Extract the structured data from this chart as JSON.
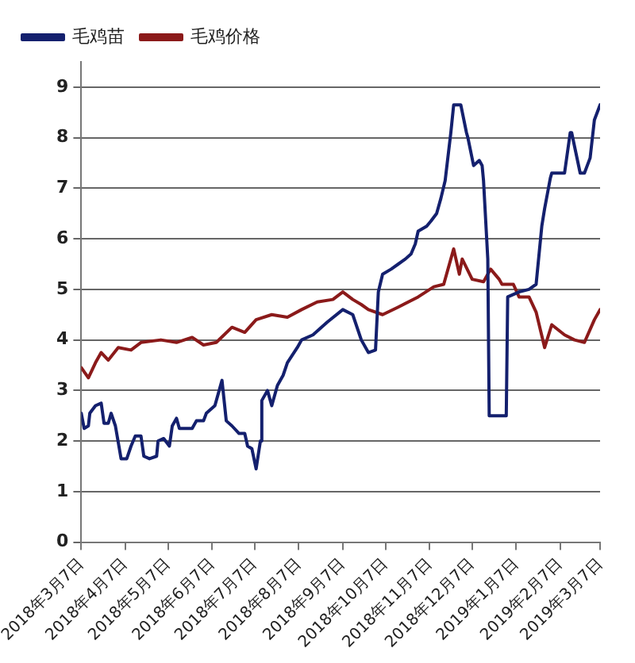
{
  "chart_data": {
    "type": "line",
    "xlim": [
      "2018-03-07",
      "2019-03-07"
    ],
    "xticks": [
      {
        "value": "2018-03-07",
        "label": "2018年3月7日"
      },
      {
        "value": "2018-04-07",
        "label": "2018年4月7日"
      },
      {
        "value": "2018-05-07",
        "label": "2018年5月7日"
      },
      {
        "value": "2018-06-07",
        "label": "2018年6月7日"
      },
      {
        "value": "2018-07-07",
        "label": "2018年7月7日"
      },
      {
        "value": "2018-08-07",
        "label": "2018年8月7日"
      },
      {
        "value": "2018-09-07",
        "label": "2018年9月7日"
      },
      {
        "value": "2018-10-07",
        "label": "2018年10月7日"
      },
      {
        "value": "2018-11-07",
        "label": "2018年11月7日"
      },
      {
        "value": "2018-12-07",
        "label": "2018年12月7日"
      },
      {
        "value": "2019-01-07",
        "label": "2019年1月7日"
      },
      {
        "value": "2019-02-07",
        "label": "2019年2月7日"
      },
      {
        "value": "2019-03-07",
        "label": "2019年3月7日"
      }
    ],
    "ylim": [
      0,
      9.5
    ],
    "yticks": [
      0,
      1,
      2,
      3,
      4,
      5,
      6,
      7,
      8,
      9
    ],
    "grid": "y",
    "legend": "top left",
    "marker": "none",
    "line_style": "solid",
    "series": [
      {
        "name": "毛鸡苗",
        "color": "#14206e",
        "x": [
          "2018-03-07",
          "2018-03-09",
          "2018-03-12",
          "2018-03-13",
          "2018-03-17",
          "2018-03-21",
          "2018-03-23",
          "2018-03-26",
          "2018-03-28",
          "2018-03-31",
          "2018-04-04",
          "2018-04-08",
          "2018-04-11",
          "2018-04-14",
          "2018-04-18",
          "2018-04-20",
          "2018-04-24",
          "2018-04-29",
          "2018-04-30",
          "2018-05-04",
          "2018-05-08",
          "2018-05-10",
          "2018-05-13",
          "2018-05-15",
          "2018-05-24",
          "2018-05-27",
          "2018-06-01",
          "2018-06-03",
          "2018-06-09",
          "2018-06-12",
          "2018-06-14",
          "2018-06-17",
          "2018-06-21",
          "2018-06-26",
          "2018-06-30",
          "2018-07-02",
          "2018-07-05",
          "2018-07-08",
          "2018-07-11",
          "2018-07-12",
          "2018-07-16",
          "2018-07-19",
          "2018-07-23",
          "2018-07-27",
          "2018-07-30",
          "2018-08-06",
          "2018-08-09",
          "2018-08-17",
          "2018-08-27",
          "2018-09-07",
          "2018-09-14",
          "2018-09-20",
          "2018-09-25",
          "2018-09-30",
          "2018-10-02",
          "2018-10-05",
          "2018-10-11",
          "2018-10-16",
          "2018-10-21",
          "2018-10-25",
          "2018-10-28",
          "2018-10-30",
          "2018-11-05",
          "2018-11-08",
          "2018-11-12",
          "2018-11-15",
          "2018-11-18",
          "2018-11-22",
          "2018-11-24",
          "2018-11-29",
          "2018-12-03",
          "2018-12-04",
          "2018-12-08",
          "2018-12-12",
          "2018-12-14",
          "2018-12-15",
          "2018-12-18",
          "2018-12-19",
          "2018-12-31",
          "2019-01-01",
          "2019-01-09",
          "2019-01-16",
          "2019-01-21",
          "2019-01-25",
          "2019-01-27",
          "2019-01-29",
          "2019-01-31",
          "2019-02-01",
          "2019-02-10",
          "2019-02-14",
          "2019-02-15",
          "2019-02-21",
          "2019-02-24",
          "2019-02-28",
          "2019-03-03",
          "2019-03-07"
        ],
        "values": [
          2.55,
          2.25,
          2.3,
          2.55,
          2.7,
          2.75,
          2.35,
          2.35,
          2.55,
          2.3,
          1.65,
          1.65,
          1.9,
          2.1,
          2.1,
          1.7,
          1.65,
          1.7,
          2.0,
          2.05,
          1.9,
          2.3,
          2.45,
          2.25,
          2.25,
          2.4,
          2.4,
          2.55,
          2.7,
          3.0,
          3.2,
          2.4,
          2.3,
          2.15,
          2.15,
          1.9,
          1.85,
          1.45,
          2.0,
          2.8,
          3.0,
          2.7,
          3.1,
          3.3,
          3.55,
          3.85,
          4.0,
          4.1,
          4.35,
          4.6,
          4.5,
          4.0,
          3.75,
          3.8,
          4.95,
          5.3,
          5.4,
          5.5,
          5.6,
          5.7,
          5.9,
          6.15,
          6.25,
          6.35,
          6.5,
          6.8,
          7.15,
          8.1,
          8.65,
          8.65,
          8.1,
          8.0,
          7.45,
          7.55,
          7.45,
          7.15,
          5.6,
          2.5,
          2.5,
          4.85,
          4.95,
          5.0,
          5.1,
          6.25,
          6.6,
          6.9,
          7.2,
          7.3,
          7.3,
          8.1,
          8.1,
          7.3,
          7.3,
          7.6,
          8.35,
          8.65
        ]
      },
      {
        "name": "毛鸡价格",
        "color": "#8b1a1a",
        "x": [
          "2018-03-07",
          "2018-03-12",
          "2018-03-17",
          "2018-03-21",
          "2018-03-26",
          "2018-04-02",
          "2018-04-11",
          "2018-04-18",
          "2018-05-02",
          "2018-05-13",
          "2018-05-24",
          "2018-06-01",
          "2018-06-10",
          "2018-06-21",
          "2018-06-30",
          "2018-07-08",
          "2018-07-19",
          "2018-07-30",
          "2018-08-09",
          "2018-08-20",
          "2018-08-31",
          "2018-09-07",
          "2018-09-14",
          "2018-09-20",
          "2018-09-25",
          "2018-10-05",
          "2018-10-16",
          "2018-10-30",
          "2018-11-10",
          "2018-11-17",
          "2018-11-24",
          "2018-11-28",
          "2018-11-30",
          "2018-12-07",
          "2018-12-15",
          "2018-12-20",
          "2018-12-26",
          "2018-12-28",
          "2019-01-05",
          "2019-01-09",
          "2019-01-16",
          "2019-01-21",
          "2019-01-27",
          "2019-02-01",
          "2019-02-10",
          "2019-02-17",
          "2019-02-24",
          "2019-03-03",
          "2019-03-07"
        ],
        "values": [
          3.45,
          3.25,
          3.55,
          3.75,
          3.6,
          3.85,
          3.8,
          3.95,
          4.0,
          3.95,
          4.05,
          3.9,
          3.95,
          4.25,
          4.15,
          4.4,
          4.5,
          4.45,
          4.6,
          4.75,
          4.8,
          4.95,
          4.8,
          4.7,
          4.6,
          4.5,
          4.65,
          4.85,
          5.05,
          5.1,
          5.8,
          5.3,
          5.6,
          5.2,
          5.15,
          5.4,
          5.2,
          5.1,
          5.1,
          4.85,
          4.85,
          4.55,
          3.85,
          4.3,
          4.1,
          4.0,
          3.95,
          4.4,
          4.6
        ]
      }
    ]
  }
}
